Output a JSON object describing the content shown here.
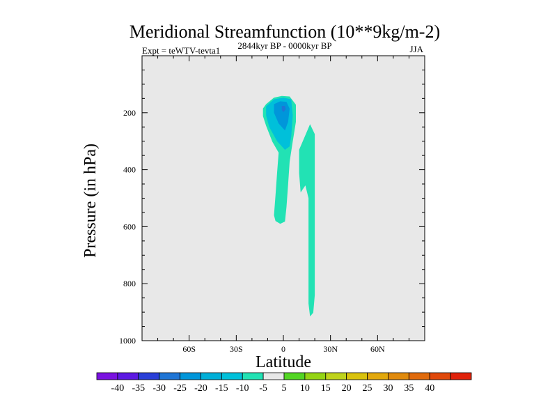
{
  "chart_data": {
    "type": "contour",
    "title": "Meridional Streamfunction (10**9kg/m-2)",
    "subtitle_left": "Expt = teWTV-tevta1",
    "subtitle_center": "2844kyr BP - 0000kyr BP",
    "subtitle_right": "JJA",
    "xlabel": "Latitude",
    "ylabel": "Pressure (in hPa)",
    "xlim": [
      -90,
      90
    ],
    "ylim": [
      1000,
      0
    ],
    "x_ticks": [
      {
        "value": -60,
        "label": "60S"
      },
      {
        "value": -30,
        "label": "30S"
      },
      {
        "value": 0,
        "label": "0"
      },
      {
        "value": 30,
        "label": "30N"
      },
      {
        "value": 60,
        "label": "60N"
      }
    ],
    "y_ticks": [
      {
        "value": 200,
        "label": "200"
      },
      {
        "value": 400,
        "label": "400"
      },
      {
        "value": 600,
        "label": "600"
      },
      {
        "value": 800,
        "label": "800"
      },
      {
        "value": 1000,
        "label": "1000"
      }
    ],
    "background_color": "#e8e8e8",
    "contour_regions": [
      {
        "level_range": [
          -10,
          -5
        ],
        "color": "#22e2b4",
        "points": [
          [
            -13,
            185
          ],
          [
            -11,
            170
          ],
          [
            -6,
            147
          ],
          [
            -1,
            141
          ],
          [
            4,
            143
          ],
          [
            8,
            172
          ],
          [
            8,
            232
          ],
          [
            6,
            300
          ],
          [
            4,
            372
          ],
          [
            3,
            452
          ],
          [
            2,
            530
          ],
          [
            1,
            582
          ],
          [
            -2,
            590
          ],
          [
            -5,
            580
          ],
          [
            -6,
            560
          ],
          [
            -5,
            490
          ],
          [
            -4,
            410
          ],
          [
            -3,
            340
          ],
          [
            -7,
            302
          ],
          [
            -11,
            246
          ],
          [
            -13,
            212
          ]
        ]
      },
      {
        "level_range": [
          -10,
          -5
        ],
        "color": "#22e2b4",
        "points": [
          [
            13,
            292
          ],
          [
            17,
            240
          ],
          [
            20,
            275
          ],
          [
            20,
            360
          ],
          [
            20,
            480
          ],
          [
            20,
            600
          ],
          [
            20,
            720
          ],
          [
            20,
            840
          ],
          [
            19,
            902
          ],
          [
            17,
            915
          ],
          [
            16,
            870
          ],
          [
            16,
            720
          ],
          [
            16,
            580
          ],
          [
            16,
            500
          ],
          [
            14,
            455
          ],
          [
            11,
            480
          ],
          [
            10,
            412
          ],
          [
            10,
            330
          ]
        ]
      },
      {
        "level_range": [
          -15,
          -10
        ],
        "color": "#00c0da",
        "points": [
          [
            -11,
            178
          ],
          [
            -6,
            153
          ],
          [
            0,
            147
          ],
          [
            5,
            153
          ],
          [
            6,
            210
          ],
          [
            5,
            282
          ],
          [
            4,
            318
          ],
          [
            1,
            330
          ],
          [
            -4,
            300
          ],
          [
            -9,
            250
          ],
          [
            -11,
            210
          ]
        ]
      },
      {
        "level_range": [
          -20,
          -15
        ],
        "color": "#0096da",
        "points": [
          [
            -6,
            170
          ],
          [
            -2,
            160
          ],
          [
            2,
            162
          ],
          [
            4,
            186
          ],
          [
            3,
            232
          ],
          [
            1,
            262
          ],
          [
            -3,
            238
          ],
          [
            -6,
            200
          ]
        ]
      },
      {
        "level_range": [
          -25,
          -20
        ],
        "color": "#1f75d5",
        "points": [
          [
            -1,
            176
          ],
          [
            1,
            176
          ],
          [
            1.5,
            188
          ],
          [
            0,
            198
          ],
          [
            -1,
            190
          ]
        ]
      }
    ],
    "colorbar": {
      "colors": [
        "#7a12e0",
        "#5c19e2",
        "#2a3fd8",
        "#1f75d5",
        "#0096da",
        "#00afd8",
        "#00c0da",
        "#22e2b4",
        "#e8e8e8",
        "#53d624",
        "#94d414",
        "#bfd31b",
        "#d9c20c",
        "#e2a80c",
        "#e08a0c",
        "#e06a0b",
        "#e0480a",
        "#e0220a"
      ],
      "labels": [
        "-40",
        "-35",
        "-30",
        "-25",
        "-20",
        "-15",
        "-10",
        "-5",
        "5",
        "10",
        "15",
        "20",
        "25",
        "30",
        "35",
        "40"
      ]
    }
  }
}
